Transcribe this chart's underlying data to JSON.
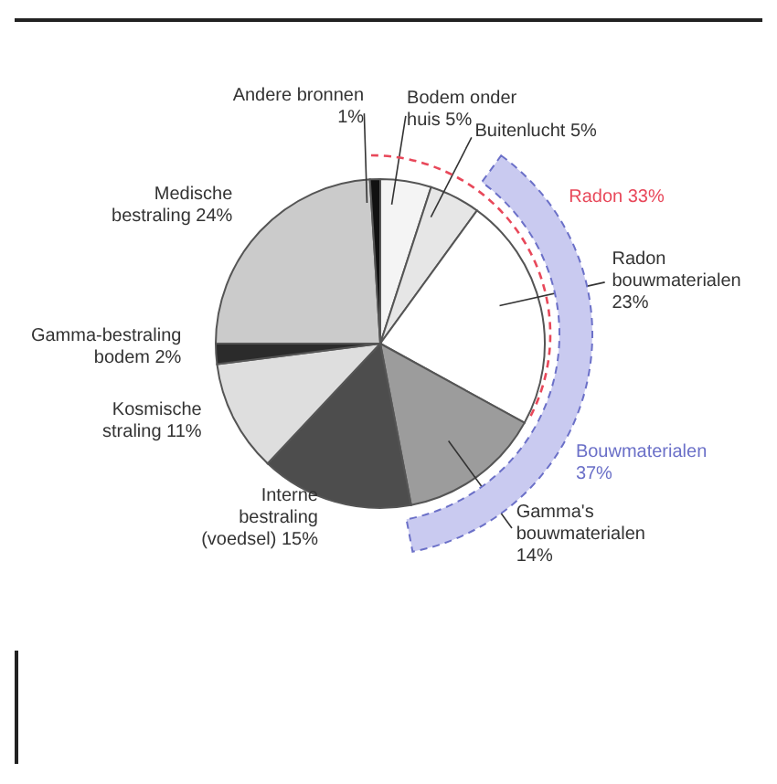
{
  "chart_data": {
    "type": "pie",
    "categories": [
      "Bodem onder huis",
      "Buitenlucht",
      "Radon bouwmaterialen",
      "Gamma's bouwmaterialen",
      "Interne bestraling (voedsel)",
      "Kosmische straling",
      "Gamma-bestraling bodem",
      "Medische bestraling",
      "Andere bronnen"
    ],
    "values": [
      5,
      5,
      23,
      14,
      15,
      11,
      2,
      24,
      1
    ],
    "value_labels": [
      "5%",
      "5%",
      "23%",
      "14%",
      "15%",
      "11%",
      "2%",
      "24%",
      "1%"
    ],
    "colors": [
      "#f4f4f4",
      "#e6e6e6",
      "#ffffff",
      "#9c9c9c",
      "#4d4d4d",
      "#dedede",
      "#2b2b2b",
      "#cbcbcb",
      "#111111"
    ],
    "annotations": [
      "Radon 33%",
      "Bouwmaterialen 37%"
    ]
  }
}
